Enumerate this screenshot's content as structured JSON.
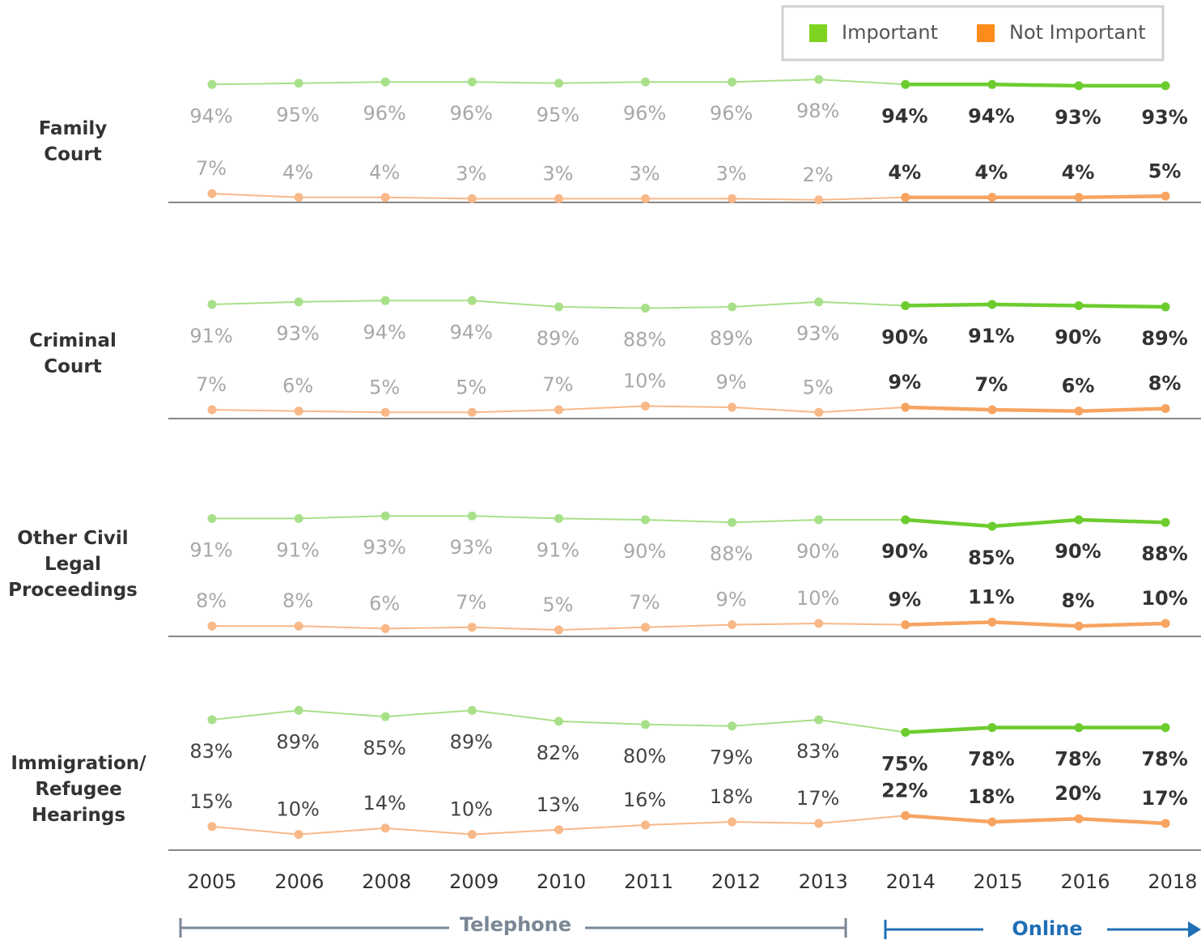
{
  "chart_data": {
    "type": "line",
    "categories": [
      "2005",
      "2006",
      "2008",
      "2009",
      "2010",
      "2011",
      "2012",
      "2013",
      "2014",
      "2015",
      "2016",
      "2018"
    ],
    "series": [
      {
        "name": "Important",
        "color": "#7ed321"
      },
      {
        "name": "Not Important",
        "color": "#ff8c1a"
      }
    ],
    "ylim": [
      0,
      100
    ],
    "panels": [
      {
        "title": "Family Court",
        "series": [
          {
            "values": [
              94,
              95,
              96,
              96,
              95,
              96,
              96,
              98,
              94,
              94,
              93,
              93
            ],
            "value_labels": [
              "94%",
              "95%",
              "96%",
              "96%",
              "95%",
              "96%",
              "96%",
              "98%",
              "94%",
              "94%",
              "93%",
              "93%"
            ]
          },
          {
            "values": [
              7,
              4,
              4,
              3,
              3,
              3,
              3,
              2,
              4,
              4,
              4,
              5
            ],
            "value_labels": [
              "7%",
              "4%",
              "4%",
              "3%",
              "3%",
              "3%",
              "3%",
              "2%",
              "4%",
              "4%",
              "4%",
              "5%"
            ]
          }
        ]
      },
      {
        "title": "Criminal Court",
        "series": [
          {
            "values": [
              91,
              93,
              94,
              94,
              89,
              88,
              89,
              93,
              90,
              91,
              90,
              89
            ],
            "value_labels": [
              "91%",
              "93%",
              "94%",
              "94%",
              "89%",
              "88%",
              "89%",
              "93%",
              "90%",
              "91%",
              "90%",
              "89%"
            ]
          },
          {
            "values": [
              7,
              6,
              5,
              5,
              7,
              10,
              9,
              5,
              9,
              7,
              6,
              8
            ],
            "value_labels": [
              "7%",
              "6%",
              "5%",
              "5%",
              "7%",
              "10%",
              "9%",
              "5%",
              "9%",
              "7%",
              "6%",
              "8%"
            ]
          }
        ]
      },
      {
        "title": "Other Civil Legal Proceedings",
        "series": [
          {
            "values": [
              91,
              91,
              93,
              93,
              91,
              90,
              88,
              90,
              90,
              85,
              90,
              88
            ],
            "value_labels": [
              "91%",
              "91%",
              "93%",
              "93%",
              "91%",
              "90%",
              "88%",
              "90%",
              "90%",
              "85%",
              "90%",
              "88%"
            ]
          },
          {
            "values": [
              8,
              8,
              6,
              7,
              5,
              7,
              9,
              10,
              9,
              11,
              8,
              10
            ],
            "value_labels": [
              "8%",
              "8%",
              "6%",
              "7%",
              "5%",
              "7%",
              "9%",
              "10%",
              "9%",
              "11%",
              "8%",
              "10%"
            ]
          }
        ]
      },
      {
        "title": "Immigration/ Refugee Hearings",
        "series": [
          {
            "values": [
              83,
              89,
              85,
              89,
              82,
              80,
              79,
              83,
              75,
              78,
              78,
              78
            ],
            "value_labels": [
              "83%",
              "89%",
              "85%",
              "89%",
              "82%",
              "80%",
              "79%",
              "83%",
              "75%",
              "78%",
              "78%",
              "78%"
            ]
          },
          {
            "values": [
              15,
              10,
              14,
              10,
              13,
              16,
              18,
              17,
              22,
              18,
              20,
              17
            ],
            "value_labels": [
              "15%",
              "10%",
              "14%",
              "10%",
              "13%",
              "16%",
              "18%",
              "17%",
              "22%",
              "18%",
              "20%",
              "17%"
            ]
          }
        ]
      }
    ],
    "annotations": [
      "Telephone",
      "Online"
    ]
  }
}
